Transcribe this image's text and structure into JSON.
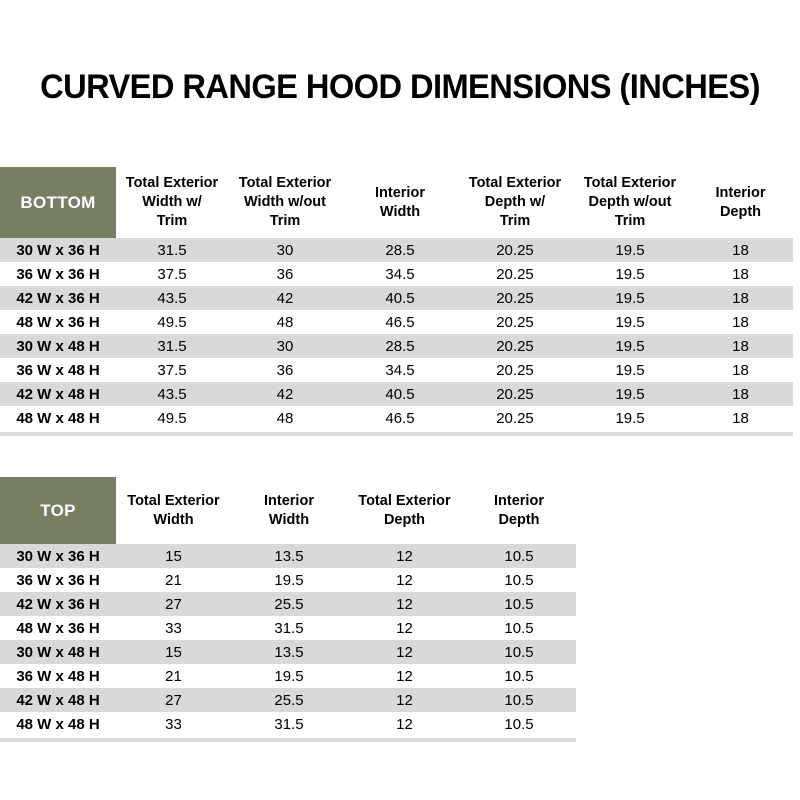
{
  "page": {
    "title": "CURVED RANGE HOOD DIMENSIONS (INCHES)"
  },
  "colors": {
    "header_green": "#747F63",
    "stripe_gray": "#D9D9D9",
    "sliver_gray": "#DCDCDC"
  },
  "bottom_table": {
    "corner_label": "BOTTOM",
    "column_headers": [
      "Total Exterior\nWidth w/\nTrim",
      "Total Exterior\nWidth w/out\nTrim",
      "Interior\nWidth",
      "Total Exterior\nDepth w/\nTrim",
      "Total Exterior\nDepth w/out\nTrim",
      "Interior\nDepth"
    ],
    "rows": [
      {
        "label": "30 W x 36 H",
        "values": [
          "31.5",
          "30",
          "28.5",
          "20.25",
          "19.5",
          "18"
        ]
      },
      {
        "label": "36 W x 36 H",
        "values": [
          "37.5",
          "36",
          "34.5",
          "20.25",
          "19.5",
          "18"
        ]
      },
      {
        "label": "42 W x 36 H",
        "values": [
          "43.5",
          "42",
          "40.5",
          "20.25",
          "19.5",
          "18"
        ]
      },
      {
        "label": "48 W x 36 H",
        "values": [
          "49.5",
          "48",
          "46.5",
          "20.25",
          "19.5",
          "18"
        ]
      },
      {
        "label": "30 W x 48 H",
        "values": [
          "31.5",
          "30",
          "28.5",
          "20.25",
          "19.5",
          "18"
        ]
      },
      {
        "label": "36 W x 48 H",
        "values": [
          "37.5",
          "36",
          "34.5",
          "20.25",
          "19.5",
          "18"
        ]
      },
      {
        "label": "42 W x 48 H",
        "values": [
          "43.5",
          "42",
          "40.5",
          "20.25",
          "19.5",
          "18"
        ]
      },
      {
        "label": "48 W x 48 H",
        "values": [
          "49.5",
          "48",
          "46.5",
          "20.25",
          "19.5",
          "18"
        ]
      }
    ]
  },
  "top_table": {
    "corner_label": "TOP",
    "column_headers": [
      "Total Exterior\nWidth",
      "Interior\nWidth",
      "Total Exterior\nDepth",
      "Interior\nDepth"
    ],
    "rows": [
      {
        "label": "30 W x 36 H",
        "values": [
          "15",
          "13.5",
          "12",
          "10.5"
        ]
      },
      {
        "label": "36 W x 36 H",
        "values": [
          "21",
          "19.5",
          "12",
          "10.5"
        ]
      },
      {
        "label": "42 W x 36 H",
        "values": [
          "27",
          "25.5",
          "12",
          "10.5"
        ]
      },
      {
        "label": "48 W x 36 H",
        "values": [
          "33",
          "31.5",
          "12",
          "10.5"
        ]
      },
      {
        "label": "30 W x 48 H",
        "values": [
          "15",
          "13.5",
          "12",
          "10.5"
        ]
      },
      {
        "label": "36 W x 48 H",
        "values": [
          "21",
          "19.5",
          "12",
          "10.5"
        ]
      },
      {
        "label": "42 W x 48 H",
        "values": [
          "27",
          "25.5",
          "12",
          "10.5"
        ]
      },
      {
        "label": "48 W x 48 H",
        "values": [
          "33",
          "31.5",
          "12",
          "10.5"
        ]
      }
    ]
  }
}
